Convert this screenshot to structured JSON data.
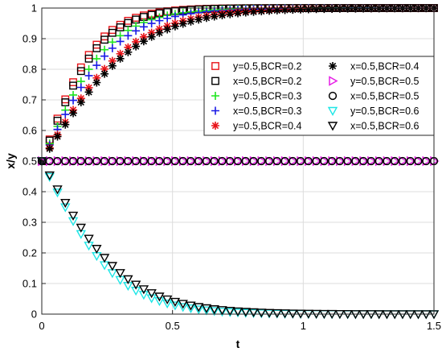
{
  "chart_data": {
    "type": "scatter",
    "xlabel": "t",
    "ylabel": "x/y",
    "xlim": [
      0,
      1.5
    ],
    "ylim": [
      0,
      1
    ],
    "x_ticks": [
      "0",
      "0.5",
      "1",
      "1.5"
    ],
    "y_ticks": [
      "0",
      "0.1",
      "0.2",
      "0.3",
      "0.4",
      "0.5",
      "0.6",
      "0.7",
      "0.8",
      "0.9",
      "1"
    ],
    "grid": true,
    "legend_position": "right",
    "sample_x": [
      0,
      0.03,
      0.06,
      0.09,
      0.12,
      0.15,
      0.18,
      0.21,
      0.24,
      0.27,
      0.3,
      0.33,
      0.36,
      0.39,
      0.42,
      0.45,
      0.48,
      0.51,
      0.54,
      0.57,
      0.6,
      0.63,
      0.66,
      0.69,
      0.72,
      0.75,
      0.78,
      0.81,
      0.84,
      0.87,
      0.9,
      0.93,
      0.96,
      0.99,
      1.02,
      1.05,
      1.08,
      1.11,
      1.14,
      1.17,
      1.2,
      1.23,
      1.26,
      1.29,
      1.32,
      1.35,
      1.38,
      1.41,
      1.44,
      1.47,
      1.5
    ],
    "series": [
      {
        "name": "y=0.5,BCR=0.2",
        "marker": "square",
        "color": "#e8141a",
        "rate": 9.5,
        "start": 0.5
      },
      {
        "name": "x=0.5,BCR=0.2",
        "marker": "square",
        "color": "#000000",
        "rate": 9.0,
        "start": 0.5
      },
      {
        "name": "y=0.5,BCR=0.3",
        "marker": "plus",
        "color": "#1ee61e",
        "rate": 7.7,
        "start": 0.5
      },
      {
        "name": "x=0.5,BCR=0.3",
        "marker": "plus",
        "color": "#1a1ae6",
        "rate": 7.0,
        "start": 0.5
      },
      {
        "name": "y=0.5,BCR=0.4",
        "marker": "asterisk",
        "color": "#e8141a",
        "rate": 5.8,
        "start": 0.5
      },
      {
        "name": "x=0.5,BCR=0.4",
        "marker": "asterisk",
        "color": "#000000",
        "rate": 5.4,
        "start": 0.5
      },
      {
        "name": "y=0.5,BCR=0.5",
        "marker": "triangle-right",
        "color": "#e61ee6",
        "rate": 0,
        "start": 0.5
      },
      {
        "name": "x=0.5,BCR=0.5",
        "marker": "circle",
        "color": "#000000",
        "rate": 0,
        "start": 0.5
      },
      {
        "name": "y=0.5,BCR=0.6",
        "marker": "triangle-down",
        "color": "#1ee6e6",
        "rate": -6.9,
        "start": 0.5
      },
      {
        "name": "x=0.5,BCR=0.6",
        "marker": "triangle-down",
        "color": "#000000",
        "rate": -6.2,
        "start": 0.5
      }
    ]
  }
}
